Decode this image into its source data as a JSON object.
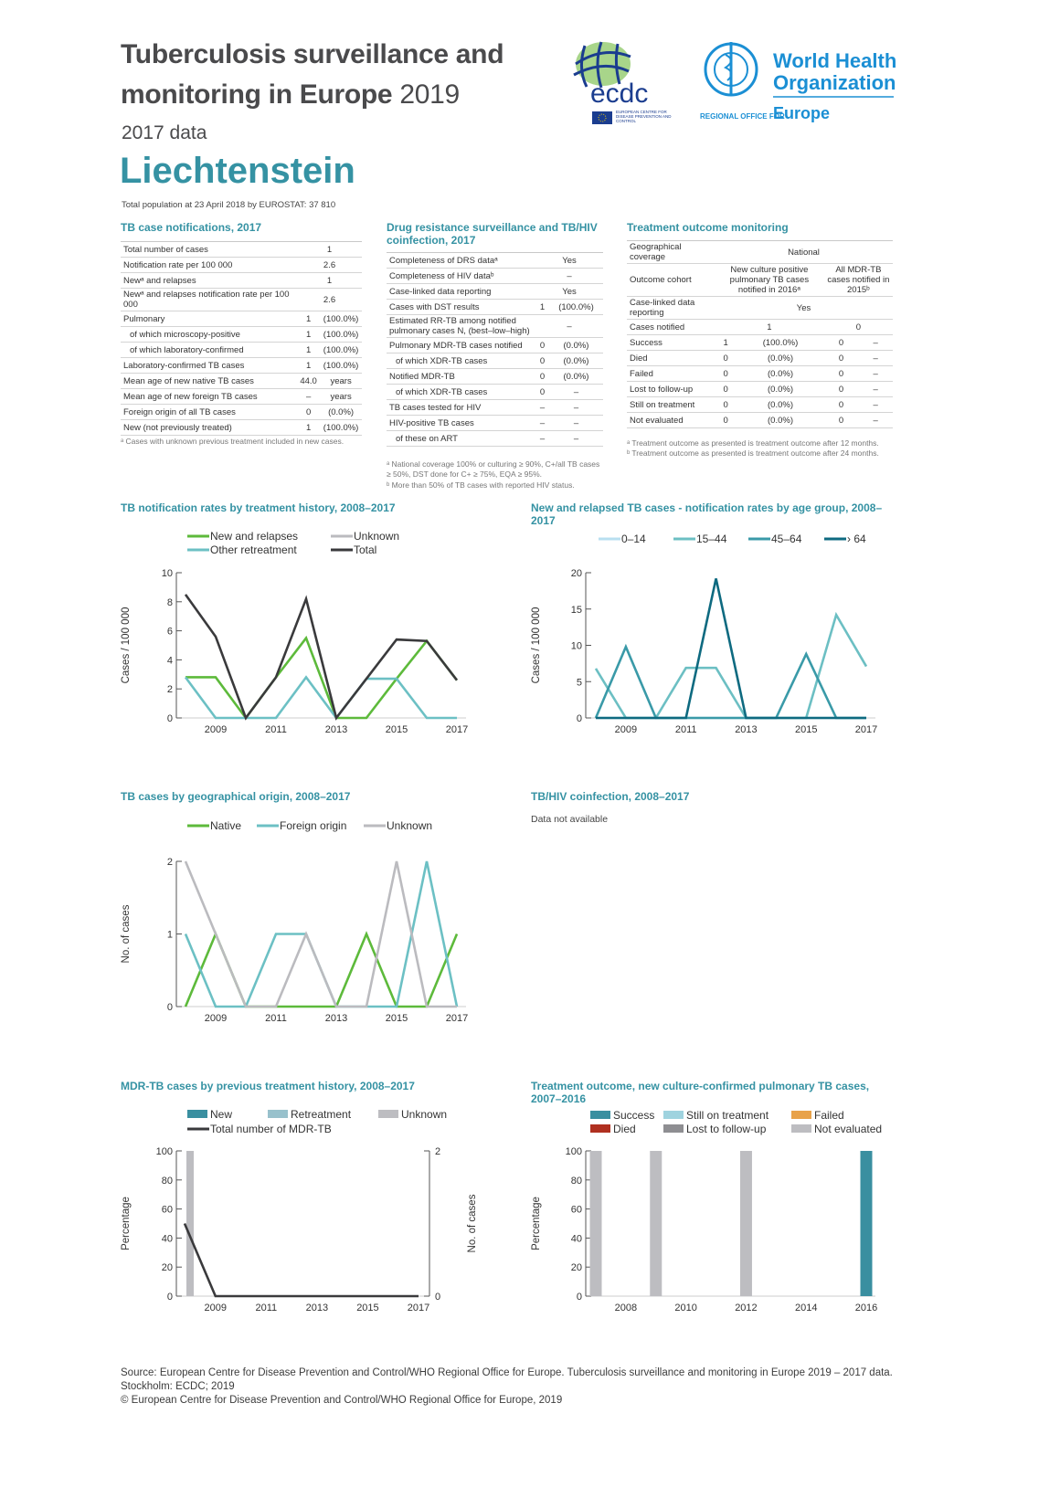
{
  "header": {
    "title_line1": "Tuberculosis surveillance and",
    "title_line2": "monitoring in Europe",
    "title_year": "2019",
    "data_year": "2017 data",
    "country": "Liechtenstein",
    "population": "Total population at 23 April 2018 by EUROSTAT: 37 810"
  },
  "logos": {
    "ecdc_wordmark": "ecdc",
    "ecdc_name": "EUROPEAN CENTRE FOR DISEASE PREVENTION AND CONTROL",
    "who_line1": "World Health",
    "who_line2": "Organization",
    "who_regional": "REGIONAL OFFICE FOR",
    "who_europe": "Europe"
  },
  "tables": {
    "notifications": {
      "title": "TB case notifications, 2017",
      "rows": [
        [
          "Total number of cases",
          "1"
        ],
        [
          "Notification rate per 100 000",
          "2.6"
        ],
        [
          "Newᵃ and relapses",
          "1"
        ],
        [
          "Newᵃ and relapses notification rate per 100 000",
          "2.6"
        ],
        [
          "Pulmonary",
          "1",
          "(100.0%)"
        ],
        [
          "  of which microscopy-positive",
          "1",
          "(100.0%)"
        ],
        [
          "  of which laboratory-confirmed",
          "1",
          "(100.0%)"
        ],
        [
          "Laboratory-confirmed TB cases",
          "1",
          "(100.0%)"
        ],
        [
          "Mean age of new native TB cases",
          "44.0",
          "years"
        ],
        [
          "Mean age of new foreign TB cases",
          "–",
          "years"
        ],
        [
          "Foreign origin of all TB cases",
          "0",
          "(0.0%)"
        ],
        [
          "New (not previously treated)",
          "1",
          "(100.0%)"
        ]
      ],
      "footnote": "ᵃ Cases with unknown previous treatment included in new cases."
    },
    "drug_resistance": {
      "title": "Drug resistance surveillance and TB/HIV coinfection, 2017",
      "rows": [
        [
          "Completeness of DRS dataᵃ",
          "Yes"
        ],
        [
          "Completeness of HIV dataᵇ",
          "–"
        ],
        [
          "Case-linked data reporting",
          "Yes"
        ],
        [
          "Cases with DST results",
          "1",
          "(100.0%)"
        ],
        [
          "Estimated RR-TB among notified pulmonary cases N, (best–low–high)",
          "–"
        ],
        [
          "Pulmonary MDR-TB cases notified",
          "0",
          "(0.0%)"
        ],
        [
          "  of which XDR-TB cases",
          "0",
          "(0.0%)"
        ],
        [
          "Notified MDR-TB",
          "0",
          "(0.0%)"
        ],
        [
          "  of which XDR-TB cases",
          "0",
          "–"
        ],
        [
          "TB cases tested for HIV",
          "–",
          "–"
        ],
        [
          "HIV-positive TB cases",
          "–",
          "–"
        ],
        [
          "  of these on ART",
          "–",
          "–"
        ]
      ],
      "footnote_a": "ᵃ National coverage 100% or culturing ≥ 90%, C+/all TB cases ≥ 50%, DST done for C+ ≥ 75%, EQA ≥ 95%.",
      "footnote_b": "ᵇ More than 50% of TB cases with reported HIV status."
    },
    "treatment_outcome": {
      "title": "Treatment outcome monitoring",
      "rows": [
        [
          "Geographical coverage",
          "National"
        ],
        [
          "Outcome cohort",
          "New culture positive pulmonary TB cases notified in 2016ᵃ",
          "All MDR-TB cases notified in 2015ᵇ"
        ],
        [
          "Case-linked data reporting",
          "Yes"
        ],
        [
          "Cases notified",
          "1",
          "0"
        ],
        [
          "Success",
          "1",
          "(100.0%)",
          "0",
          "–"
        ],
        [
          "Died",
          "0",
          "(0.0%)",
          "0",
          "–"
        ],
        [
          "Failed",
          "0",
          "(0.0%)",
          "0",
          "–"
        ],
        [
          "Lost to follow-up",
          "0",
          "(0.0%)",
          "0",
          "–"
        ],
        [
          "Still on treatment",
          "0",
          "(0.0%)",
          "0",
          "–"
        ],
        [
          "Not evaluated",
          "0",
          "(0.0%)",
          "0",
          "–"
        ]
      ],
      "footnote_a": "ᵃ Treatment outcome as presented is treatment outcome after 12 months.",
      "footnote_b": "ᵇ Treatment outcome as presented is treatment outcome after 24 months."
    }
  },
  "colors": {
    "accent": "#3592a3",
    "title": "#4a4a4c"
  },
  "tbhiv": {
    "title": "TB/HIV coinfection, 2008–2017",
    "note": "Data not available"
  },
  "chart_data": [
    {
      "id": "c1",
      "type": "line",
      "title": "TB notification rates by treatment history, 2008–2017",
      "ylabel": "Cases / 100 000",
      "ylim": [
        0,
        10
      ],
      "yticks": [
        0,
        2,
        4,
        6,
        8,
        10
      ],
      "x": [
        2008,
        2009,
        2010,
        2011,
        2012,
        2013,
        2014,
        2015,
        2016,
        2017
      ],
      "xticks": [
        2009,
        2011,
        2013,
        2015,
        2017
      ],
      "legend": "top",
      "series": [
        {
          "name": "New and relapses",
          "color": "#5dba3b",
          "values": [
            2.8,
            2.8,
            0,
            2.8,
            5.5,
            0,
            0,
            2.7,
            5.3,
            2.6
          ]
        },
        {
          "name": "Other retreatment",
          "color": "#6cc0c4",
          "values": [
            2.8,
            0,
            0,
            0,
            2.8,
            0,
            2.7,
            2.7,
            0,
            0
          ]
        },
        {
          "name": "Unknown",
          "color": "#bbbbbf",
          "values": [
            null,
            null,
            null,
            null,
            null,
            null,
            null,
            null,
            null,
            null
          ]
        },
        {
          "name": "Total",
          "color": "#3a3a3c",
          "values": [
            8.5,
            5.6,
            0,
            2.8,
            8.2,
            0,
            2.7,
            5.4,
            5.3,
            2.6
          ]
        }
      ]
    },
    {
      "id": "c2",
      "type": "line",
      "title": "New and relapsed TB cases - notification rates by age group, 2008–2017",
      "ylabel": "Cases / 100 000",
      "ylim": [
        0,
        20
      ],
      "yticks": [
        0,
        5,
        10,
        15,
        20
      ],
      "x": [
        2008,
        2009,
        2010,
        2011,
        2012,
        2013,
        2014,
        2015,
        2016,
        2017
      ],
      "xticks": [
        2009,
        2011,
        2013,
        2015,
        2017
      ],
      "legend": "top",
      "series": [
        {
          "name": "0–14",
          "color": "#b8dff0",
          "values": [
            0,
            0,
            0,
            0,
            0,
            0,
            0,
            0,
            0,
            0
          ]
        },
        {
          "name": "15–44",
          "color": "#6cbfc3",
          "values": [
            6.8,
            0,
            0,
            6.9,
            6.9,
            0,
            0,
            0,
            14.2,
            7.1
          ]
        },
        {
          "name": "45–64",
          "color": "#3a9aa8",
          "values": [
            0,
            9.8,
            0,
            0,
            0,
            0,
            0,
            8.8,
            0,
            0
          ]
        },
        {
          "name": "› 64",
          "color": "#0e6a80",
          "values": [
            0,
            0,
            0,
            0,
            19.2,
            0,
            0,
            0,
            0,
            0
          ]
        }
      ]
    },
    {
      "id": "c3",
      "type": "line",
      "title": "TB cases by geographical origin, 2008–2017",
      "ylabel": "No. of cases",
      "ylim": [
        0,
        2
      ],
      "yticks": [
        0,
        1,
        2
      ],
      "x": [
        2008,
        2009,
        2010,
        2011,
        2012,
        2013,
        2014,
        2015,
        2016,
        2017
      ],
      "xticks": [
        2009,
        2011,
        2013,
        2015,
        2017
      ],
      "legend": "top",
      "series": [
        {
          "name": "Native",
          "color": "#5dba3b",
          "values": [
            0,
            1,
            0,
            0,
            0,
            0,
            1,
            0,
            0,
            1
          ]
        },
        {
          "name": "Foreign origin",
          "color": "#6cc0c4",
          "values": [
            1,
            0,
            0,
            1,
            1,
            0,
            0,
            0,
            2,
            0
          ]
        },
        {
          "name": "Unknown",
          "color": "#bbbbbf",
          "values": [
            2,
            1,
            0,
            0,
            1,
            0,
            0,
            2,
            0,
            0
          ]
        }
      ]
    },
    {
      "id": "c4",
      "type": "bar",
      "title": "MDR-TB cases by previous treatment history, 2008–2017",
      "ylabel": "Percentage",
      "y2label": "No. of cases",
      "ylim": [
        0,
        100
      ],
      "yticks": [
        0,
        20,
        40,
        60,
        80,
        100
      ],
      "y2lim": [
        0,
        2
      ],
      "y2ticks": [
        0,
        2
      ],
      "x": [
        2008,
        2009,
        2010,
        2011,
        2012,
        2013,
        2014,
        2015,
        2016,
        2017
      ],
      "xticks": [
        2009,
        2011,
        2013,
        2015,
        2017
      ],
      "legend": "top",
      "series": [
        {
          "name": "New",
          "color": "#3a8fa0",
          "values": [
            0,
            0,
            0,
            0,
            0,
            0,
            0,
            0,
            0,
            0
          ]
        },
        {
          "name": "Retreatment",
          "color": "#98c1cc",
          "values": [
            0,
            0,
            0,
            0,
            0,
            0,
            0,
            0,
            0,
            0
          ]
        },
        {
          "name": "Unknown",
          "color": "#bdbdc1",
          "values": [
            100,
            0,
            0,
            0,
            0,
            0,
            0,
            0,
            0,
            0
          ]
        }
      ],
      "line_series": {
        "name": "Total number of MDR-TB",
        "color": "#3a3a3c",
        "axis": "right",
        "values": [
          1,
          0,
          0,
          0,
          0,
          0,
          0,
          0,
          0,
          0
        ]
      }
    },
    {
      "id": "c5",
      "type": "bar",
      "title": "Treatment outcome, new culture-confirmed pulmonary TB cases, 2007–2016",
      "ylabel": "Percentage",
      "ylim": [
        0,
        100
      ],
      "yticks": [
        0,
        20,
        40,
        60,
        80,
        100
      ],
      "x": [
        2007,
        2008,
        2009,
        2010,
        2011,
        2012,
        2013,
        2014,
        2015,
        2016
      ],
      "xticks": [
        2008,
        2010,
        2012,
        2014,
        2016
      ],
      "legend": "top",
      "series": [
        {
          "name": "Success",
          "color": "#3a8fa0",
          "values": [
            0,
            0,
            0,
            0,
            0,
            0,
            0,
            0,
            0,
            100
          ]
        },
        {
          "name": "Still on treatment",
          "color": "#9fd3df",
          "values": [
            0,
            0,
            0,
            0,
            0,
            0,
            0,
            0,
            0,
            0
          ]
        },
        {
          "name": "Failed",
          "color": "#e8a24a",
          "values": [
            0,
            0,
            0,
            0,
            0,
            0,
            0,
            0,
            0,
            0
          ]
        },
        {
          "name": "Died",
          "color": "#b03020",
          "values": [
            0,
            0,
            0,
            0,
            0,
            0,
            0,
            0,
            0,
            0
          ]
        },
        {
          "name": "Lost to follow-up",
          "color": "#8e8e92",
          "values": [
            0,
            0,
            0,
            0,
            0,
            0,
            0,
            0,
            0,
            0
          ]
        },
        {
          "name": "Not evaluated",
          "color": "#bdbdc1",
          "values": [
            100,
            0,
            100,
            0,
            0,
            100,
            0,
            0,
            0,
            0
          ]
        }
      ]
    }
  ],
  "footer": {
    "source": "Source: European Centre for Disease Prevention and Control/WHO Regional Office for Europe. Tuberculosis surveillance and monitoring in Europe 2019 – 2017 data. Stockholm: ECDC; 2019",
    "copyright": "© European Centre for Disease Prevention and Control/WHO Regional Office for Europe, 2019"
  }
}
